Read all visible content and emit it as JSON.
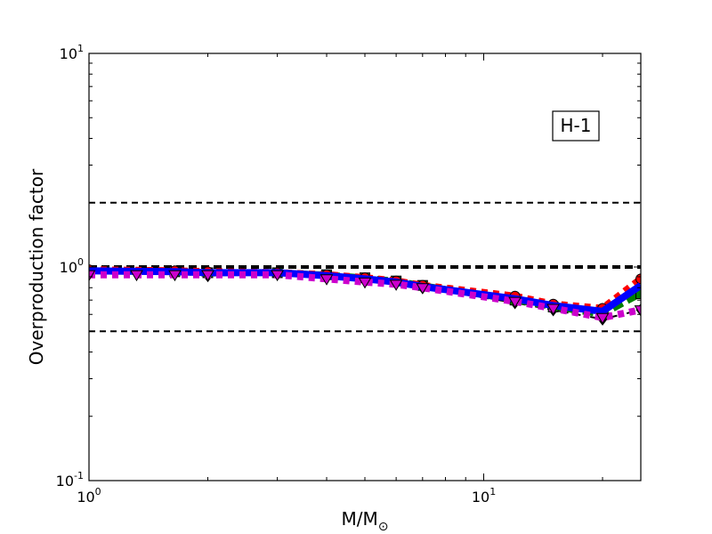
{
  "chart_data": {
    "type": "line",
    "title": "",
    "xlabel": "M/M",
    "xlabel_subscript": "⊙",
    "ylabel": "Overproduction factor",
    "xscale": "log",
    "yscale": "log",
    "xlim": [
      1,
      25
    ],
    "ylim": [
      0.1,
      10
    ],
    "grid": false,
    "legend": "none",
    "xticks": [
      {
        "value": 1,
        "base": "10",
        "exp": "0"
      },
      {
        "value": 10,
        "base": "10",
        "exp": "1"
      }
    ],
    "yticks": [
      {
        "value": 0.1,
        "base": "10",
        "exp": "-1"
      },
      {
        "value": 1,
        "base": "10",
        "exp": "0"
      },
      {
        "value": 10,
        "base": "10",
        "exp": "1"
      }
    ],
    "annotation": {
      "text": "H-1",
      "position": "top-right"
    },
    "reference_lines": [
      {
        "y": 2.0,
        "style": "dashed",
        "color": "#000000",
        "width": "thin"
      },
      {
        "y": 1.0,
        "style": "dashed",
        "color": "#000000",
        "width": "thick"
      },
      {
        "y": 0.5,
        "style": "dashed",
        "color": "#000000",
        "width": "thin"
      }
    ],
    "series": [
      {
        "color": "#000000",
        "style": "dashdot",
        "marker": "diamond",
        "x": [
          1,
          1.65,
          2,
          3,
          4,
          5,
          6,
          7,
          12,
          15,
          20,
          25
        ],
        "y": [
          0.95,
          0.93,
          0.91,
          0.93,
          0.9,
          0.87,
          0.84,
          0.8,
          0.68,
          0.63,
          0.57,
          0.63
        ]
      },
      {
        "color": "#008000",
        "style": "dashed",
        "marker": "square",
        "x": [
          1,
          1.65,
          2,
          3,
          4,
          5,
          6,
          7,
          12,
          15,
          20,
          25
        ],
        "y": [
          0.96,
          0.95,
          0.94,
          0.94,
          0.92,
          0.89,
          0.86,
          0.82,
          0.7,
          0.65,
          0.6,
          0.75
        ]
      },
      {
        "color": "#ff0000",
        "style": "dotted",
        "marker": "circle",
        "x": [
          1,
          1.65,
          2,
          3,
          4,
          5,
          6,
          7,
          12,
          15,
          20,
          25
        ],
        "y": [
          0.97,
          0.96,
          0.95,
          0.94,
          0.92,
          0.89,
          0.86,
          0.82,
          0.73,
          0.67,
          0.64,
          0.88
        ]
      },
      {
        "color": "#0000ff",
        "style": "solid",
        "marker": "none",
        "x": [
          1,
          1.65,
          2,
          3,
          4,
          5,
          6,
          7,
          12,
          15,
          20,
          25
        ],
        "y": [
          0.96,
          0.95,
          0.94,
          0.94,
          0.91,
          0.88,
          0.85,
          0.81,
          0.71,
          0.66,
          0.62,
          0.82
        ]
      },
      {
        "color": "#cc00cc",
        "style": "dotted",
        "marker": "triangle-down",
        "x": [
          1,
          1.32,
          1.65,
          2,
          3,
          4,
          5,
          6,
          7,
          12,
          15,
          20,
          25
        ],
        "y": [
          0.92,
          0.92,
          0.92,
          0.92,
          0.92,
          0.88,
          0.85,
          0.83,
          0.8,
          0.69,
          0.64,
          0.58,
          0.63
        ]
      }
    ]
  }
}
